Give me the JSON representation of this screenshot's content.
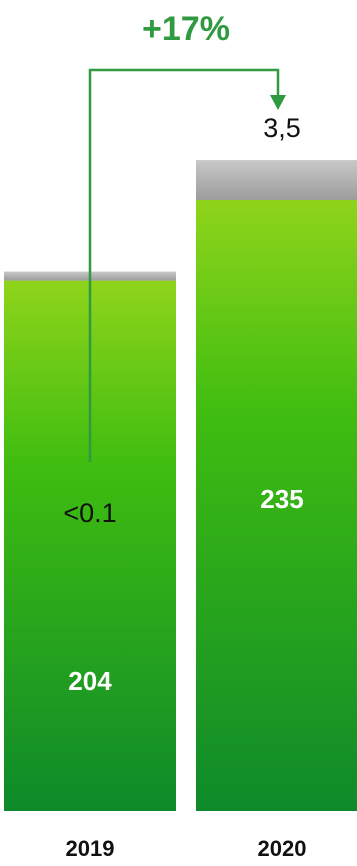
{
  "chart_data": {
    "type": "bar",
    "stacked": true,
    "categories": [
      "2019",
      "2020"
    ],
    "series": [
      {
        "values": [
          204,
          235
        ],
        "color": "#2fb01c"
      },
      {
        "values": [
          0.1,
          3.5
        ],
        "color": "#a8a8a8"
      }
    ],
    "data_labels": {
      "main": [
        "204",
        "235"
      ],
      "top": [
        "<0.1",
        "3,5"
      ]
    },
    "annotation": {
      "type": "growth-arrow",
      "from": "2019",
      "to": "2020",
      "label": "+17%",
      "color": "#2f9a3f"
    },
    "legend": "none",
    "grid": false,
    "title": "",
    "xlabel": "",
    "ylabel": ""
  }
}
